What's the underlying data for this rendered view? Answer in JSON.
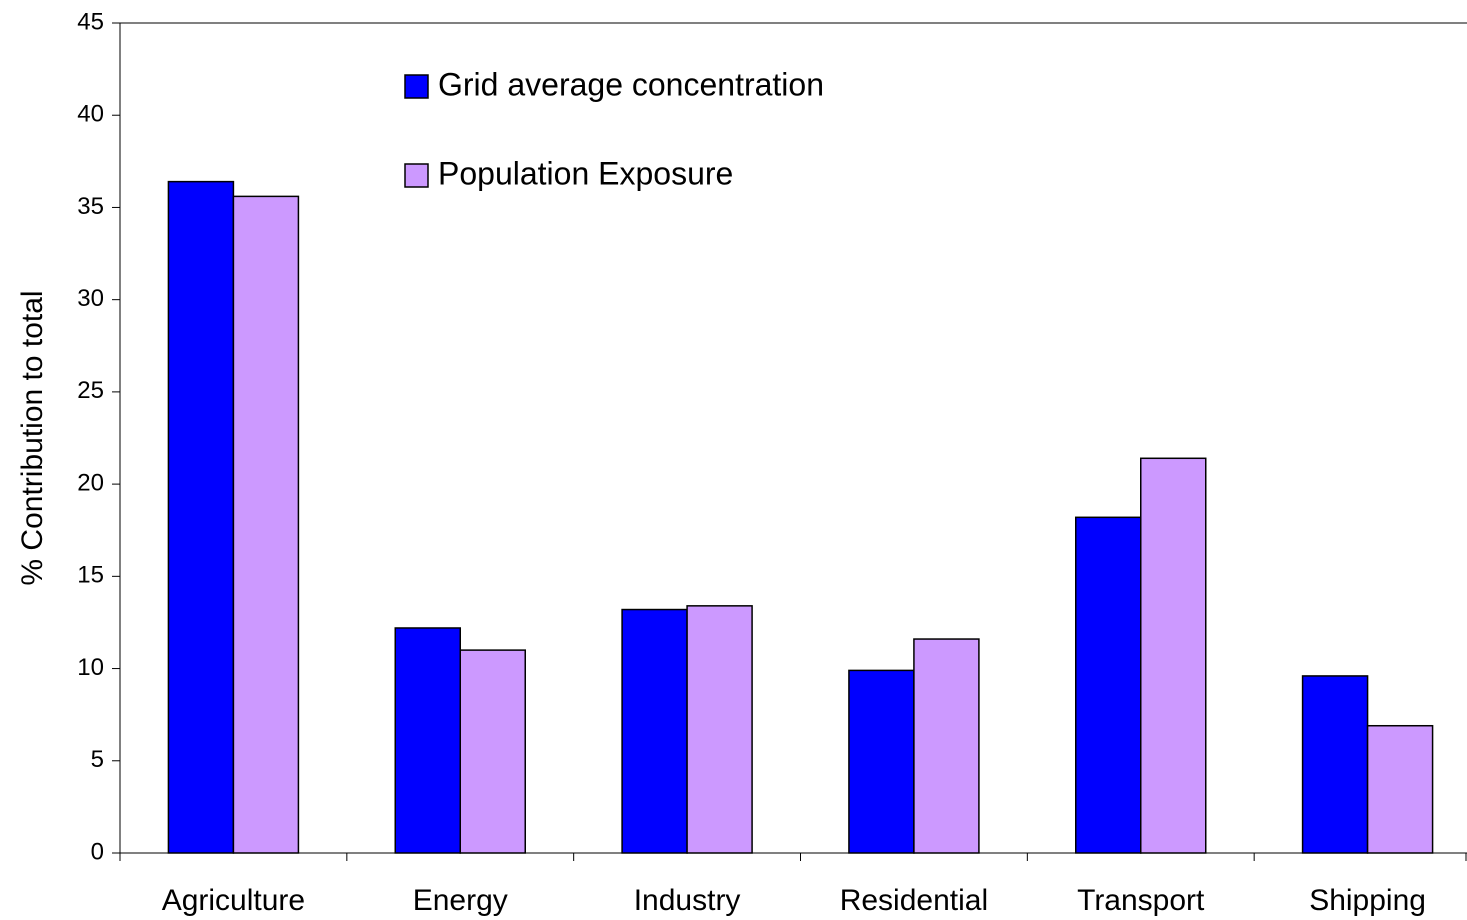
{
  "chart_data": {
    "type": "bar",
    "y_label": "% Contribution to total",
    "categories": [
      "Agriculture",
      "Energy",
      "Industry",
      "Residential",
      "Transport",
      "Shipping"
    ],
    "series": [
      {
        "name": "Grid average concentration",
        "color": "#0000ff",
        "values": [
          36.4,
          12.2,
          13.2,
          9.9,
          18.2,
          9.6
        ]
      },
      {
        "name": "Population Exposure",
        "color": "#cc99ff",
        "values": [
          35.6,
          11.0,
          13.4,
          11.6,
          21.4,
          6.9
        ]
      }
    ],
    "ylim": [
      0,
      45
    ],
    "yticks": [
      0,
      5,
      10,
      15,
      20,
      25,
      30,
      35,
      40,
      45
    ],
    "grid": false
  }
}
